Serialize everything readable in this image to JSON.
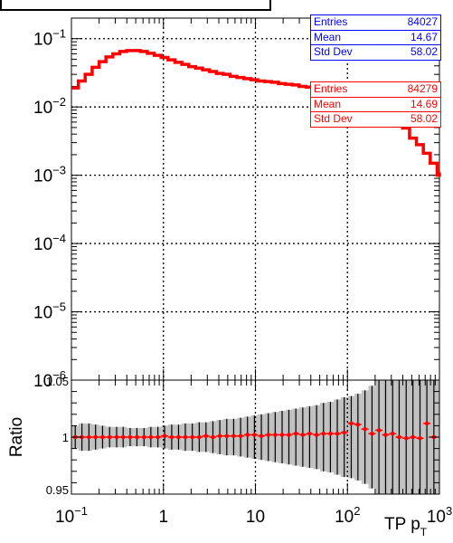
{
  "title": "",
  "colors": {
    "ref": "#0000ff",
    "new": "#ff0000",
    "band": "#c0c0c0",
    "axis": "#000000"
  },
  "stats": {
    "ref": {
      "labels": [
        "Entries",
        "Mean",
        "Std Dev"
      ],
      "values": [
        "84027",
        "14.67",
        "58.02"
      ]
    },
    "new": {
      "labels": [
        "Entries",
        "Mean",
        "Std Dev"
      ],
      "values": [
        "84279",
        "14.69",
        "58.02"
      ]
    }
  },
  "chart_data": [
    {
      "type": "line",
      "panel": "main",
      "xscale": "log",
      "yscale": "log",
      "xlim": [
        0.1,
        1000
      ],
      "ylim": [
        1e-06,
        0.2
      ],
      "grid": true,
      "xlabel": "",
      "ylabel": "",
      "y_tick_labels": [
        "10^-6",
        "10^-5",
        "10^-4",
        "10^-3",
        "10^-2",
        "10^-1"
      ],
      "bin_edges": [
        0.1,
        0.119,
        0.141,
        0.168,
        0.2,
        0.237,
        0.282,
        0.335,
        0.398,
        0.473,
        0.562,
        0.668,
        0.794,
        0.944,
        1.122,
        1.334,
        1.585,
        1.884,
        2.239,
        2.661,
        3.162,
        3.758,
        4.467,
        5.309,
        6.31,
        7.499,
        8.913,
        10.59,
        12.59,
        14.96,
        17.78,
        21.13,
        25.12,
        29.85,
        35.48,
        42.17,
        50.12,
        59.57,
        70.79,
        84.14,
        100,
        118.9,
        141.3,
        167.9,
        199.5,
        237.1,
        281.8,
        334.9,
        398.1,
        473.2,
        562.3,
        668.3,
        794.3,
        944.1,
        1000
      ],
      "series": [
        {
          "name": "",
          "color": "#ff0000",
          "values": [
            0.019,
            0.024,
            0.03,
            0.038,
            0.046,
            0.054,
            0.06,
            0.065,
            0.067,
            0.067,
            0.065,
            0.061,
            0.057,
            0.053,
            0.049,
            0.045,
            0.042,
            0.039,
            0.037,
            0.035,
            0.033,
            0.031,
            0.03,
            0.028,
            0.027,
            0.026,
            0.025,
            0.024,
            0.0235,
            0.023,
            0.022,
            0.0215,
            0.021,
            0.02,
            0.0195,
            0.019,
            0.0185,
            0.018,
            0.0175,
            0.017,
            0.0165,
            0.016,
            0.0155,
            0.014,
            0.012,
            0.0095,
            0.0068,
            0.006,
            0.0049,
            0.0035,
            0.0028,
            0.0021,
            0.0015,
            0.001,
            0.0011
          ]
        }
      ]
    },
    {
      "type": "scatter",
      "panel": "ratio",
      "xscale": "log",
      "xlim": [
        0.1,
        1000
      ],
      "ylim": [
        0.95,
        1.05
      ],
      "ylabel": "Ratio",
      "xlabel": "TP p_T",
      "x_tick_labels": [
        "10^-1",
        "1",
        "10",
        "10^2",
        "10^3"
      ],
      "y_tick_labels": [
        "0.95",
        "1",
        "1.05"
      ],
      "x": [
        0.11,
        0.13,
        0.155,
        0.183,
        0.218,
        0.26,
        0.31,
        0.365,
        0.435,
        0.515,
        0.615,
        0.73,
        0.87,
        1.03,
        1.23,
        1.46,
        1.73,
        2.06,
        2.45,
        2.9,
        3.45,
        4.1,
        4.88,
        5.8,
        6.9,
        8.2,
        9.75,
        11.6,
        13.8,
        16.4,
        19.5,
        23.1,
        27.5,
        32.7,
        38.8,
        46.2,
        54.9,
        65.3,
        77.6,
        92.3,
        110,
        130,
        155,
        185,
        220,
        260,
        310,
        365,
        435,
        515,
        615,
        730,
        870
      ],
      "values": [
        1.0,
        1.0,
        1.0,
        1.0,
        1.0,
        1.0,
        1.0,
        1.0,
        1.0,
        1.0,
        1.0,
        1.0,
        1.0,
        1.001,
        1.0,
        1.0,
        1.0,
        1.0,
        1.0,
        1.001,
        1.0,
        1.001,
        1.001,
        1.001,
        1.001,
        1.002,
        1.002,
        1.001,
        1.002,
        1.002,
        1.002,
        1.002,
        1.003,
        1.002,
        1.003,
        1.002,
        1.003,
        1.003,
        1.003,
        1.004,
        1.012,
        1.011,
        1.007,
        1.003,
        1.006,
        1.002,
        1.003,
        1.0,
        0.999,
        1.0,
        0.999,
        1.012,
        1.0
      ],
      "band_half_width": [
        0.01,
        0.012,
        0.012,
        0.011,
        0.01,
        0.009,
        0.009,
        0.009,
        0.008,
        0.008,
        0.008,
        0.009,
        0.009,
        0.01,
        0.011,
        0.011,
        0.012,
        0.012,
        0.013,
        0.013,
        0.014,
        0.015,
        0.016,
        0.016,
        0.017,
        0.018,
        0.019,
        0.02,
        0.021,
        0.022,
        0.023,
        0.024,
        0.025,
        0.026,
        0.027,
        0.028,
        0.03,
        0.031,
        0.033,
        0.035,
        0.036,
        0.038,
        0.041,
        0.045,
        0.05,
        0.05,
        0.05,
        0.05,
        0.05,
        0.05,
        0.05,
        0.05,
        0.05
      ]
    }
  ]
}
